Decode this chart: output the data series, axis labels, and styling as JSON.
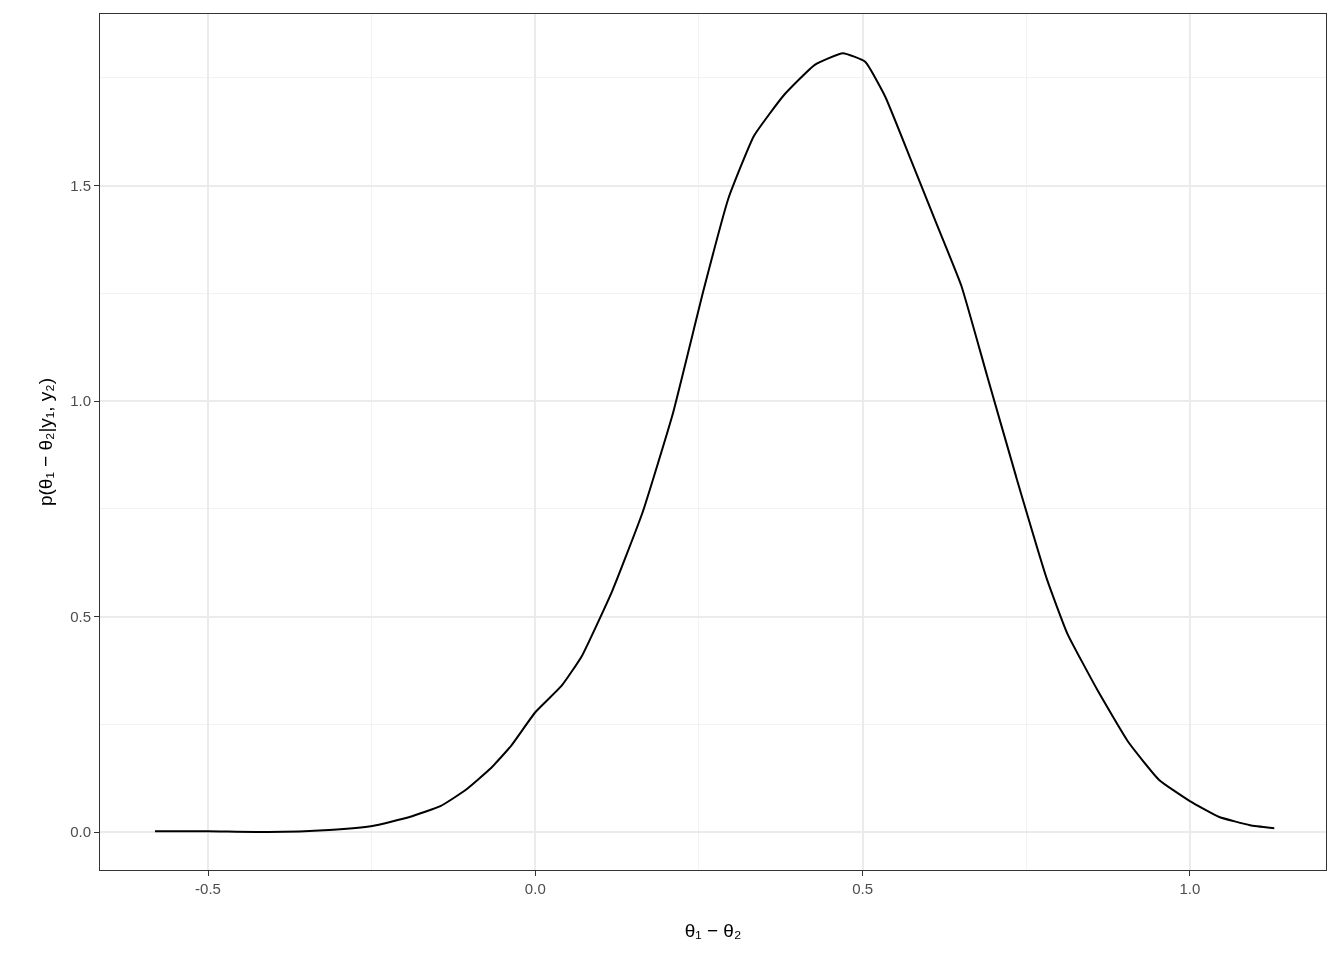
{
  "chart_data": {
    "type": "line",
    "xlabel": "θ₁ − θ₂",
    "ylabel": "p(θ₁ − θ₂|y₁, y₂)",
    "x": [
      -0.581,
      -0.5,
      -0.408,
      -0.315,
      -0.249,
      -0.192,
      -0.145,
      -0.107,
      -0.068,
      -0.037,
      0.0,
      0.04,
      0.071,
      0.118,
      0.164,
      0.21,
      0.257,
      0.295,
      0.334,
      0.38,
      0.427,
      0.47,
      0.504,
      0.535,
      0.574,
      0.612,
      0.651,
      0.69,
      0.736,
      0.782,
      0.813,
      0.859,
      0.906,
      0.953,
      1.0,
      1.045,
      1.092,
      1.129
    ],
    "series": [
      {
        "color": "#000000",
        "values": [
          0.002,
          0.002,
          0.0,
          0.005,
          0.014,
          0.035,
          0.06,
          0.097,
          0.148,
          0.2,
          0.278,
          0.339,
          0.408,
          0.561,
          0.742,
          0.97,
          1.257,
          1.47,
          1.615,
          1.71,
          1.78,
          1.807,
          1.787,
          1.705,
          1.559,
          1.415,
          1.267,
          1.06,
          0.817,
          0.585,
          0.46,
          0.329,
          0.209,
          0.121,
          0.072,
          0.035,
          0.016,
          0.009
        ]
      }
    ],
    "xlim": [
      -0.665,
      1.208
    ],
    "ylim": [
      -0.088,
      1.898
    ],
    "xticks": [
      -0.5,
      {
        "value": -0.25,
        "label": null
      },
      {
        "value": 0,
        "label": "0.0"
      },
      {
        "value": 0.25,
        "label": null
      },
      0.5,
      {
        "value": 0.75,
        "label": null
      },
      {
        "value": 1,
        "label": "1.0"
      }
    ],
    "yticks": [
      {
        "value": 0,
        "label": "0.0"
      },
      {
        "value": 0.25,
        "label": null
      },
      0.5,
      {
        "value": 0.75,
        "label": null
      },
      {
        "value": 1,
        "label": "1.0"
      },
      {
        "value": 1.25,
        "label": null
      },
      1.5,
      {
        "value": 1.75,
        "label": null
      }
    ],
    "grid": true,
    "marker": "none",
    "line_style": "solid"
  }
}
